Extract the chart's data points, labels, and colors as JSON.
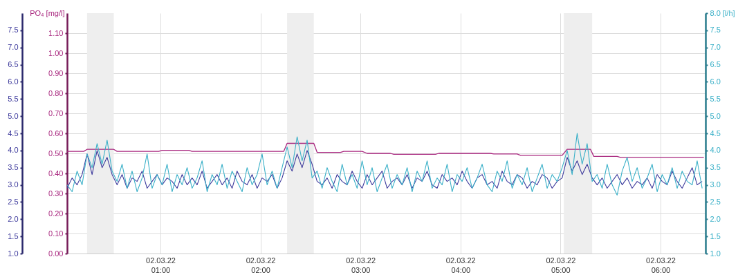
{
  "chart_data": {
    "type": "line",
    "ylabel": "PO₄ [mg/l]",
    "x": [
      "--03-02T00:04",
      "--03-02T00:07",
      "--03-02T00:10",
      "--03-02T00:13",
      "--03-02T00:16",
      "--03-02T00:19",
      "--03-02T00:22",
      "--03-02T00:25",
      "--03-02T00:28",
      "--03-02T00:31",
      "--03-02T00:34",
      "--03-02T00:37",
      "--03-02T00:40",
      "--03-02T00:43",
      "--03-02T00:46",
      "--03-02T00:49",
      "--03-02T00:52",
      "--03-02T00:55",
      "--03-02T00:58",
      "--03-02T01:01",
      "--03-02T01:04",
      "--03-02T01:07",
      "--03-02T01:10",
      "--03-02T01:13",
      "--03-02T01:16",
      "--03-02T01:19",
      "--03-02T01:22",
      "--03-02T01:25",
      "--03-02T01:28",
      "--03-02T01:31",
      "--03-02T01:34",
      "--03-02T01:37",
      "--03-02T01:40",
      "--03-02T01:43",
      "--03-02T01:46",
      "--03-02T01:49",
      "--03-02T01:52",
      "--03-02T01:55",
      "--03-02T01:58",
      "--03-02T02:01",
      "--03-02T02:04",
      "--03-02T02:07",
      "--03-02T02:10",
      "--03-02T02:13",
      "--03-02T02:16",
      "--03-02T02:19",
      "--03-02T02:22",
      "--03-02T02:25",
      "--03-02T02:28",
      "--03-02T02:31",
      "--03-02T02:34",
      "--03-02T02:37",
      "--03-02T02:40",
      "--03-02T02:43",
      "--03-02T02:46",
      "--03-02T02:49",
      "--03-02T02:52",
      "--03-02T02:55",
      "--03-02T02:58",
      "--03-02T03:01",
      "--03-02T03:04",
      "--03-02T03:07",
      "--03-02T03:10",
      "--03-02T03:13",
      "--03-02T03:16",
      "--03-02T03:19",
      "--03-02T03:22",
      "--03-02T03:25",
      "--03-02T03:28",
      "--03-02T03:31",
      "--03-02T03:34",
      "--03-02T03:37",
      "--03-02T03:40",
      "--03-02T03:43",
      "--03-02T03:46",
      "--03-02T03:49",
      "--03-02T03:52",
      "--03-02T03:55",
      "--03-02T03:58",
      "--03-02T04:01",
      "--03-02T04:04",
      "--03-02T04:07",
      "--03-02T04:10",
      "--03-02T04:13",
      "--03-02T04:16",
      "--03-02T04:19",
      "--03-02T04:22",
      "--03-02T04:25",
      "--03-02T04:28",
      "--03-02T04:31",
      "--03-02T04:34",
      "--03-02T04:37",
      "--03-02T04:40",
      "--03-02T04:43",
      "--03-02T04:46",
      "--03-02T04:49",
      "--03-02T04:52",
      "--03-02T04:55",
      "--03-02T04:58",
      "--03-02T05:01",
      "--03-02T05:04",
      "--03-02T05:07",
      "--03-02T05:10",
      "--03-02T05:13",
      "--03-02T05:16",
      "--03-02T05:19",
      "--03-02T05:22",
      "--03-02T05:25",
      "--03-02T05:28",
      "--03-02T05:31",
      "--03-02T05:34",
      "--03-02T05:37",
      "--03-02T05:40",
      "--03-02T05:43",
      "--03-02T05:46",
      "--03-02T05:49",
      "--03-02T05:52",
      "--03-02T05:55",
      "--03-02T05:58",
      "--03-02T06:01",
      "--03-02T06:04",
      "--03-02T06:07",
      "--03-02T06:10",
      "--03-02T06:13",
      "--03-02T06:16",
      "--03-02T06:19",
      "--03-02T06:22",
      "--03-02T06:25"
    ],
    "series": [
      {
        "color": "#a8267e",
        "x": [
          "--03-02T00:04",
          "--03-02T00:14",
          "--03-02T00:16",
          "--03-02T00:32",
          "--03-02T00:34",
          "--03-02T00:59",
          "--03-02T01:01",
          "--03-02T01:17",
          "--03-02T01:19",
          "--03-02T02:14",
          "--03-02T02:16",
          "--03-02T02:32",
          "--03-02T02:34",
          "--03-02T02:48",
          "--03-02T02:50",
          "--03-02T03:01",
          "--03-02T03:04",
          "--03-02T03:18",
          "--03-02T03:20",
          "--03-02T03:45",
          "--03-02T03:47",
          "--03-02T04:18",
          "--03-02T04:20",
          "--03-02T04:34",
          "--03-02T04:36",
          "--03-02T05:01",
          "--03-02T05:04",
          "--03-02T05:18",
          "--03-02T05:20",
          "--03-02T05:34",
          "--03-02T05:36",
          "--03-02T06:26"
        ],
        "values": [
          0.51,
          0.51,
          0.52,
          0.52,
          0.51,
          0.51,
          0.515,
          0.515,
          0.51,
          0.51,
          0.55,
          0.55,
          0.505,
          0.505,
          0.51,
          0.51,
          0.5,
          0.5,
          0.495,
          0.495,
          0.5,
          0.5,
          0.497,
          0.497,
          0.49,
          0.49,
          0.52,
          0.52,
          0.485,
          0.485,
          0.48,
          0.48
        ]
      },
      {
        "color": "#3d3a9c",
        "axis": "y3",
        "values": [
          2.9,
          3.2,
          3.0,
          3.3,
          3.9,
          3.3,
          4.0,
          3.5,
          3.8,
          3.3,
          3.0,
          3.3,
          2.9,
          3.2,
          3.1,
          3.4,
          2.9,
          3.1,
          3.3,
          3.0,
          3.2,
          3.1,
          2.9,
          3.3,
          3.0,
          3.2,
          3.0,
          3.4,
          2.9,
          3.1,
          3.3,
          3.0,
          3.2,
          2.9,
          3.4,
          3.1,
          3.0,
          3.3,
          2.9,
          3.2,
          3.1,
          3.3,
          2.9,
          3.2,
          3.7,
          3.4,
          3.9,
          3.5,
          4.0,
          3.6,
          3.1,
          3.0,
          3.2,
          2.9,
          3.3,
          3.1,
          3.0,
          3.4,
          3.1,
          2.9,
          3.3,
          3.0,
          3.2,
          3.4,
          2.9,
          3.1,
          3.2,
          3.0,
          3.3,
          2.9,
          3.2,
          3.1,
          3.4,
          3.0,
          2.9,
          3.3,
          3.1,
          3.2,
          3.0,
          3.4,
          3.1,
          2.9,
          3.2,
          3.3,
          3.0,
          3.1,
          2.9,
          3.4,
          3.1,
          3.0,
          3.3,
          3.2,
          2.9,
          3.1,
          3.0,
          3.3,
          3.2,
          2.9,
          3.1,
          3.2,
          3.8,
          3.4,
          3.7,
          3.3,
          3.6,
          3.2,
          3.0,
          3.2,
          2.9,
          3.1,
          3.3,
          3.0,
          3.2,
          2.9,
          3.1,
          3.0,
          3.2,
          2.9,
          3.3,
          3.1,
          3.0,
          3.4,
          3.1,
          2.9,
          3.2,
          3.5,
          3.0,
          3.1
        ]
      },
      {
        "color": "#3ab0c8",
        "axis": "y2",
        "values": [
          3.0,
          2.8,
          3.4,
          3.0,
          3.9,
          3.5,
          4.2,
          3.6,
          4.3,
          3.4,
          3.1,
          3.6,
          2.9,
          3.4,
          2.8,
          3.2,
          3.9,
          2.9,
          3.3,
          3.0,
          3.6,
          2.8,
          3.3,
          3.0,
          3.5,
          2.9,
          3.2,
          3.7,
          2.8,
          3.3,
          3.0,
          3.6,
          2.9,
          3.4,
          3.1,
          2.8,
          3.5,
          3.0,
          3.3,
          3.9,
          3.0,
          3.4,
          2.9,
          3.5,
          4.1,
          3.5,
          4.4,
          3.7,
          4.3,
          3.2,
          3.4,
          2.9,
          3.5,
          3.1,
          2.8,
          3.6,
          3.0,
          3.3,
          2.9,
          3.7,
          3.0,
          3.5,
          2.8,
          3.2,
          3.6,
          2.9,
          3.3,
          3.0,
          3.5,
          2.8,
          3.4,
          3.1,
          3.7,
          2.9,
          3.2,
          3.0,
          3.6,
          2.8,
          3.3,
          3.1,
          3.5,
          2.9,
          3.2,
          3.6,
          3.0,
          2.8,
          3.4,
          3.1,
          3.7,
          2.9,
          3.3,
          3.0,
          3.5,
          2.8,
          3.2,
          3.6,
          2.9,
          3.3,
          3.1,
          3.5,
          4.0,
          3.3,
          4.5,
          3.6,
          4.2,
          3.1,
          3.3,
          2.9,
          3.6,
          3.0,
          2.7,
          3.4,
          3.8,
          3.1,
          3.5,
          2.9,
          3.2,
          3.6,
          2.8,
          3.3,
          3.0,
          3.5,
          2.9,
          3.4,
          3.1,
          3.0,
          3.7,
          2.9
        ]
      }
    ],
    "xlim": [
      "--03-02T00:04",
      "--03-02T06:27"
    ],
    "xticks": [
      {
        "value": "--03-02T01:00",
        "label": "02.03.22\n01:00"
      },
      {
        "value": "--03-02T02:00",
        "label": "02.03.22\n02:00"
      },
      {
        "value": "--03-02T03:00",
        "label": "02.03.22\n03:00"
      },
      {
        "value": "--03-02T04:00",
        "label": "02.03.22\n04:00"
      },
      {
        "value": "--03-02T05:00",
        "label": "02.03.22\n05:00"
      },
      {
        "value": "--03-02T06:00",
        "label": "02.03.22\n06:00"
      }
    ],
    "ylim": [
      0,
      1.2
    ],
    "yticks": [
      {
        "value": 0,
        "label": "0.00"
      },
      {
        "value": 0.1,
        "label": "0.10"
      },
      {
        "value": 0.2,
        "label": "0.20"
      },
      {
        "value": 0.3,
        "label": "0.30"
      },
      {
        "value": 0.4,
        "label": "0.40"
      },
      {
        "value": 0.5,
        "label": "0.50"
      },
      {
        "value": 0.6,
        "label": "0.60"
      },
      {
        "value": 0.7,
        "label": "0.70"
      },
      {
        "value": 0.8,
        "label": "0.80"
      },
      {
        "value": 0.9,
        "label": "0.90"
      },
      {
        "value": 1,
        "label": "1.00"
      },
      {
        "value": 1.1,
        "label": "1.10"
      }
    ],
    "y2lim": [
      1,
      8
    ],
    "y2ticks": [
      {
        "value": 1,
        "label": "1.0"
      },
      {
        "value": 1.5,
        "label": "1.5"
      },
      {
        "value": 2,
        "label": "2.0"
      },
      {
        "value": 2.5,
        "label": "2.5"
      },
      {
        "value": 3,
        "label": "3.0"
      },
      {
        "value": 3.5,
        "label": "3.5"
      },
      {
        "value": 4,
        "label": "4.0"
      },
      {
        "value": 4.5,
        "label": "4.5"
      },
      {
        "value": 5,
        "label": "5.0"
      },
      {
        "value": 5.5,
        "label": "5.5"
      },
      {
        "value": 6,
        "label": "6.0"
      },
      {
        "value": 6.5,
        "label": "6.5"
      },
      {
        "value": 7,
        "label": "7.0"
      },
      {
        "value": 7.5,
        "label": "7.5"
      },
      {
        "value": 8,
        "label": "8.0 [l/h]"
      }
    ],
    "y3lim": [
      1,
      8
    ],
    "y3ticks": [
      {
        "value": 1,
        "label": "1.0"
      },
      {
        "value": 1.5,
        "label": "1.5"
      },
      {
        "value": 2,
        "label": "2.0"
      },
      {
        "value": 2.5,
        "label": "2.5"
      },
      {
        "value": 3,
        "label": "3.0"
      },
      {
        "value": 3.5,
        "label": "3.5"
      },
      {
        "value": 4,
        "label": "4.0"
      },
      {
        "value": 4.5,
        "label": "4.5"
      },
      {
        "value": 5,
        "label": "5.0"
      },
      {
        "value": 5.5,
        "label": "5.5"
      },
      {
        "value": 6,
        "label": "6.0"
      },
      {
        "value": 6.5,
        "label": "6.5"
      },
      {
        "value": 7,
        "label": "7.0"
      },
      {
        "value": 7.5,
        "label": "7.5"
      }
    ],
    "bands": [
      {
        "axis": "x",
        "from": "--03-02T00:16",
        "to": "--03-02T00:32",
        "color": "#eeeeee"
      },
      {
        "axis": "x",
        "from": "--03-02T02:16",
        "to": "--03-02T02:32",
        "color": "#eeeeee"
      },
      {
        "axis": "x",
        "from": "--03-02T05:02",
        "to": "--03-02T05:19",
        "color": "#eeeeee"
      }
    ],
    "grid": true
  }
}
